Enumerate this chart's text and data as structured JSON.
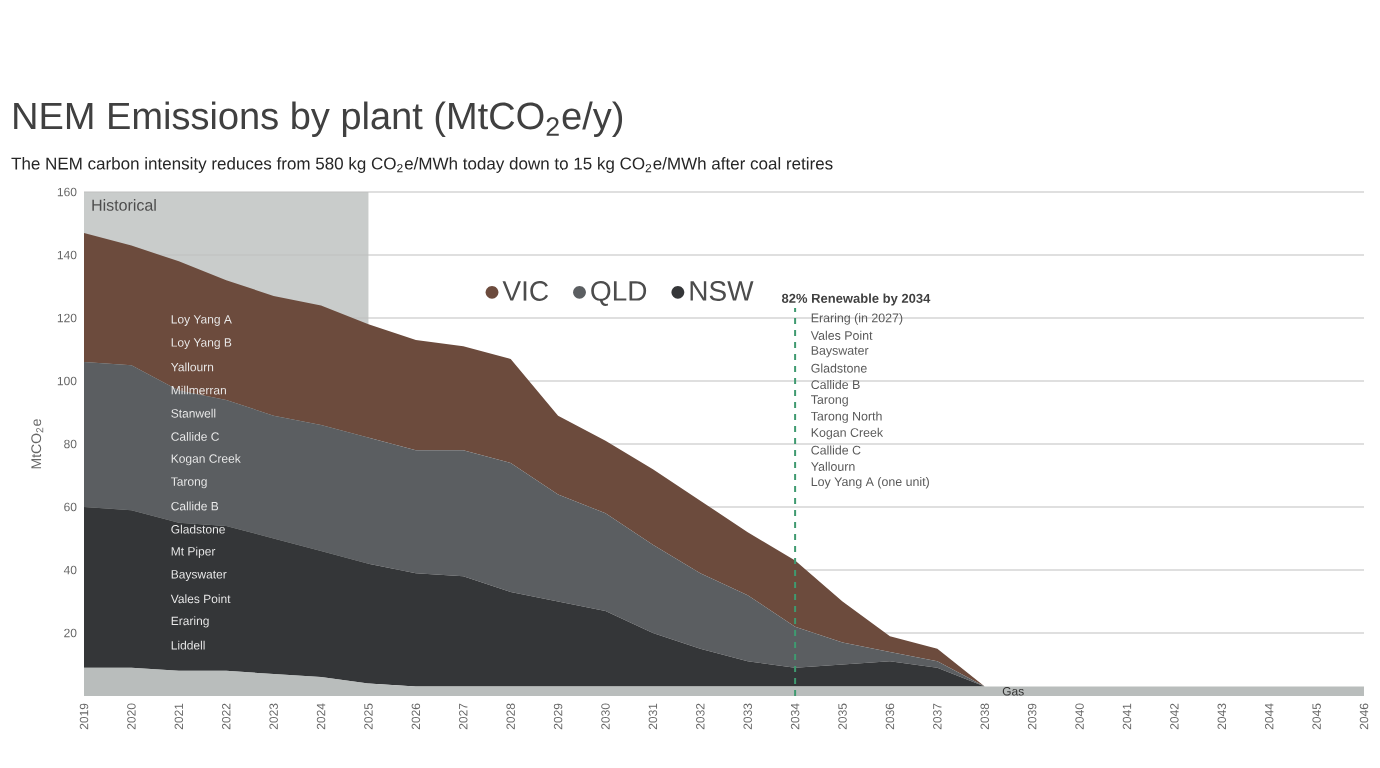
{
  "chart_data": {
    "type": "area",
    "stacked": true,
    "title": "NEM Emissions by plant (MtCO$_{2}$e/y)",
    "subtitle": "The NEM carbon intensity reduces from 580 kg CO$_{2}$e/MWh today down to 15 kg CO$_{2}$e/MWh after coal retires",
    "ylabel": "MtCO$_{2}$e",
    "x": [
      2019,
      2020,
      2021,
      2022,
      2023,
      2024,
      2025,
      2026,
      2027,
      2028,
      2029,
      2030,
      2031,
      2032,
      2033,
      2034,
      2035,
      2036,
      2037,
      2038,
      2039,
      2040,
      2041,
      2042,
      2043,
      2044,
      2045,
      2046
    ],
    "series": [
      {
        "color": "#b9bdbc",
        "values": [
          9,
          9,
          8,
          8,
          7,
          6,
          4,
          3,
          3,
          3,
          3,
          3,
          3,
          3,
          3,
          3,
          3,
          3,
          3,
          3,
          3,
          3,
          3,
          3,
          3,
          3,
          3,
          3
        ]
      },
      {
        "name": "NSW",
        "color": "#343638",
        "values": [
          51,
          50,
          47,
          46,
          43,
          40,
          38,
          36,
          35,
          30,
          27,
          24,
          17,
          12,
          8,
          6,
          7,
          8,
          6,
          0,
          0,
          0,
          0,
          0,
          0,
          0,
          0,
          0
        ]
      },
      {
        "name": "QLD",
        "color": "#5b5e61",
        "values": [
          46,
          46,
          42,
          40,
          39,
          40,
          40,
          39,
          40,
          41,
          34,
          31,
          28,
          24,
          21,
          13,
          7,
          3,
          2,
          0,
          0,
          0,
          0,
          0,
          0,
          0,
          0,
          0
        ]
      },
      {
        "name": "VIC",
        "color": "#6c4b3d",
        "values": [
          41,
          38,
          41,
          38,
          38,
          38,
          36,
          35,
          33,
          33,
          25,
          23,
          24,
          23,
          20,
          21,
          13,
          5,
          4,
          0,
          0,
          0,
          0,
          0,
          0,
          0,
          0,
          0
        ]
      }
    ],
    "xlim": [
      2019,
      2046
    ],
    "ylim": [
      0,
      160
    ],
    "xticks": [
      2019,
      2020,
      2021,
      2022,
      2023,
      2024,
      2025,
      2026,
      2027,
      2028,
      2029,
      2030,
      2031,
      2032,
      2033,
      2034,
      2035,
      2036,
      2037,
      2038,
      2039,
      2040,
      2041,
      2042,
      2043,
      2044,
      2045,
      2046
    ],
    "yticks": [
      20,
      40,
      60,
      80,
      100,
      120,
      140,
      160
    ],
    "grid": "y",
    "legend": "top",
    "bands": [
      {
        "axis": "x",
        "from": 2019,
        "to": 2025,
        "label": "Historical",
        "color": "#c9cccb"
      }
    ],
    "ref_lines": [
      {
        "axis": "x",
        "value": 2034,
        "label": "82% Renewable by 2034",
        "color": "#3f9a70",
        "line_style": "dashed"
      }
    ],
    "annotations": [
      "Loy Yang A",
      "Loy Yang B",
      "Yallourn",
      "Millmerran",
      "Stanwell",
      "Callide C",
      "Kogan Creek",
      "Tarong",
      "Callide B",
      "Gladstone",
      "Mt Piper",
      "Bayswater",
      "Vales Point",
      "Eraring",
      "Liddell",
      {
        "text": "Gas",
        "x": 2038.6,
        "y": 1.5
      },
      "Eraring (in 2027)",
      "Vales Point",
      "Bayswater",
      "Gladstone",
      "Callide B",
      "Tarong",
      "Tarong North",
      "Kogan Creek",
      "Callide C",
      "Yallourn",
      "Loy Yang A (one unit)"
    ]
  }
}
